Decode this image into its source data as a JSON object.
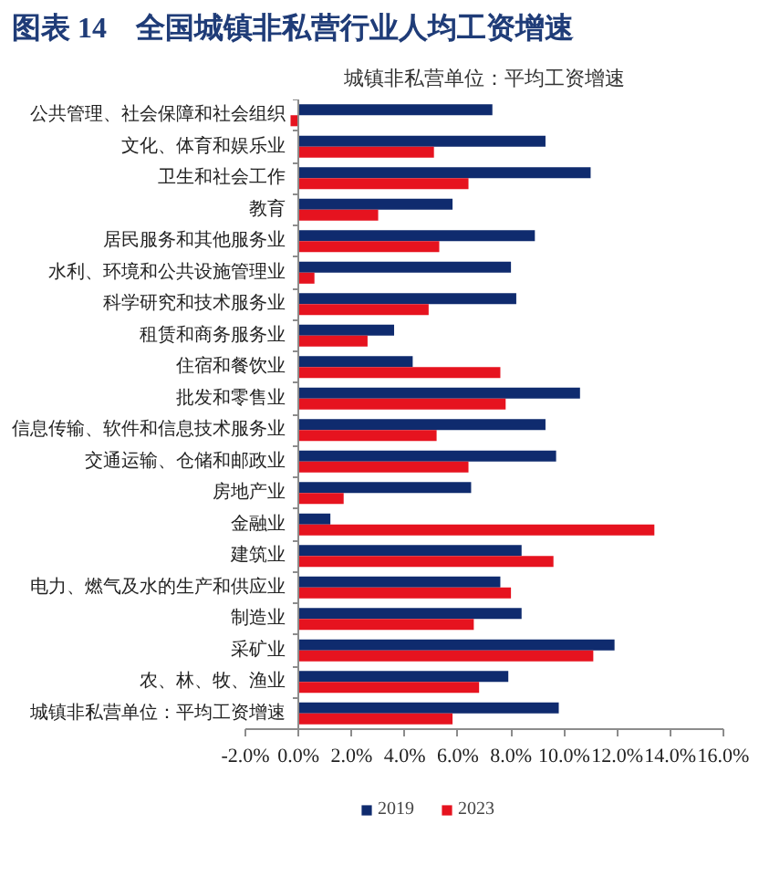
{
  "chart_data": {
    "type": "bar",
    "orientation": "horizontal",
    "title": "图表 14　全国城镇非私营行业人均工资增速",
    "subtitle": "城镇非私营单位：平均工资增速",
    "categories": [
      "公共管理、社会保障和社会组织",
      "文化、体育和娱乐业",
      "卫生和社会工作",
      "教育",
      "居民服务和其他服务业",
      "水利、环境和公共设施管理业",
      "科学研究和技术服务业",
      "租赁和商务服务业",
      "住宿和餐饮业",
      "批发和零售业",
      "信息传输、软件和信息技术服务业",
      "交通运输、仓储和邮政业",
      "房地产业",
      "金融业",
      "建筑业",
      "电力、燃气及水的生产和供应业",
      "制造业",
      "采矿业",
      "农、林、牧、渔业",
      "城镇非私营单位：平均工资增速"
    ],
    "series": [
      {
        "name": "2019",
        "color": "#0f2b6e",
        "values": [
          7.3,
          9.3,
          11.0,
          5.8,
          8.9,
          8.0,
          8.2,
          3.6,
          4.3,
          10.6,
          9.3,
          9.7,
          6.5,
          1.2,
          8.4,
          7.6,
          8.4,
          11.9,
          7.9,
          9.8
        ]
      },
      {
        "name": "2023",
        "color": "#e6131f",
        "values": [
          -0.3,
          5.1,
          6.4,
          3.0,
          5.3,
          0.6,
          4.9,
          2.6,
          7.6,
          7.8,
          5.2,
          6.4,
          1.7,
          13.4,
          9.6,
          8.0,
          6.6,
          11.1,
          6.8,
          5.8
        ]
      }
    ],
    "xlim": [
      -2,
      16
    ],
    "xticks": [
      {
        "value": -2,
        "label": "-2.0%"
      },
      {
        "value": 0,
        "label": "0.0%"
      },
      {
        "value": 2,
        "label": "2.0%"
      },
      {
        "value": 4,
        "label": "4.0%"
      },
      {
        "value": 6,
        "label": "6.0%"
      },
      {
        "value": 8,
        "label": "8.0%"
      },
      {
        "value": 10,
        "label": "10.0%"
      },
      {
        "value": 12,
        "label": "12.0%"
      },
      {
        "value": 14,
        "label": "14.0%"
      },
      {
        "value": 16,
        "label": "16.0%"
      }
    ],
    "grid": false,
    "legend": "bottom"
  }
}
